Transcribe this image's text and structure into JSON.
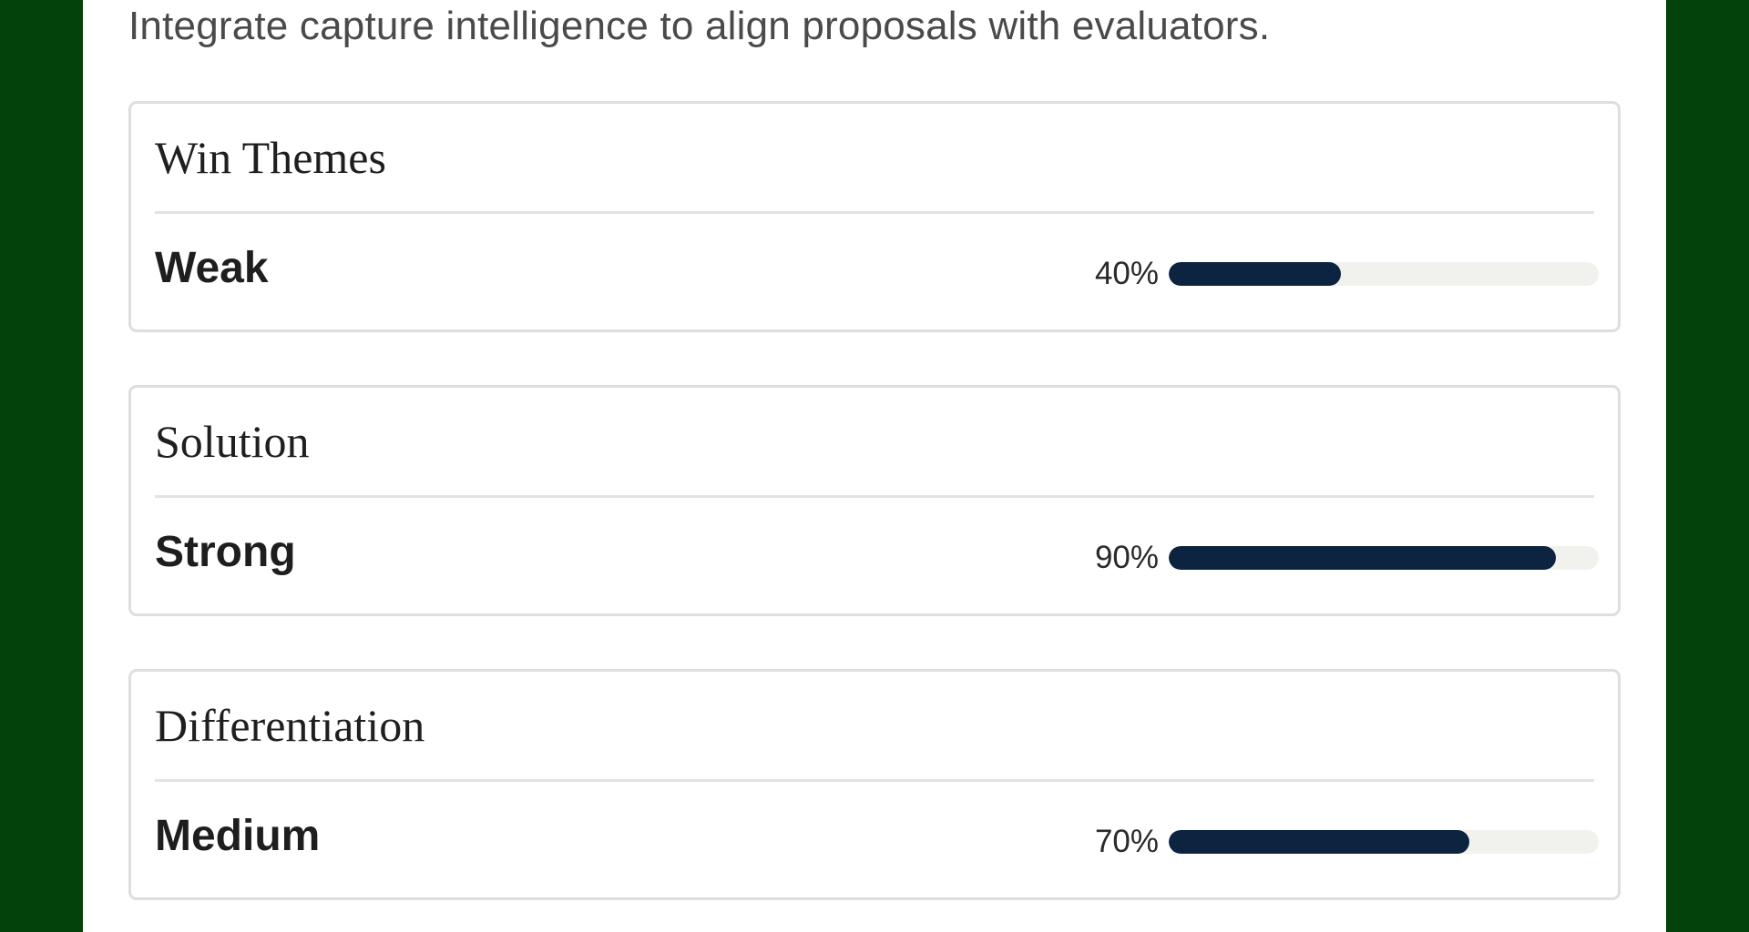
{
  "header": {
    "subtitle": "Integrate capture intelligence to align proposals with evaluators."
  },
  "colors": {
    "page_background": "#03420a",
    "bar_fill": "#0c2440",
    "bar_track": "#f1f1ee"
  },
  "cards": [
    {
      "title": "Win Themes",
      "rating": "Weak",
      "percent_label": "40%",
      "percent": 40
    },
    {
      "title": "Solution",
      "rating": "Strong",
      "percent_label": "90%",
      "percent": 90
    },
    {
      "title": "Differentiation",
      "rating": "Medium",
      "percent_label": "70%",
      "percent": 70
    }
  ]
}
